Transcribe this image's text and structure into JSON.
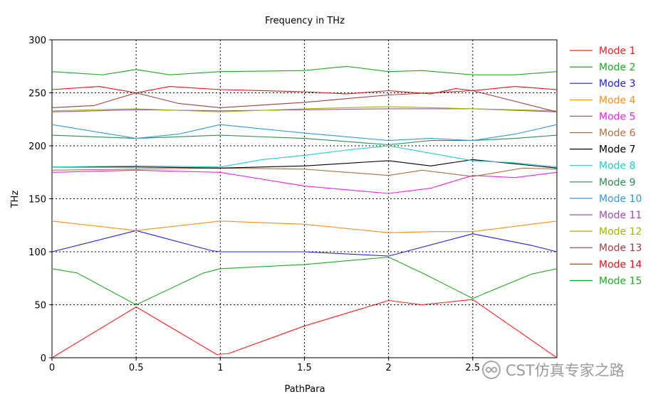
{
  "chart_data": {
    "type": "line",
    "title": "Frequency in THz",
    "xlabel": "PathPara",
    "ylabel": "THz",
    "xlim": [
      0,
      3
    ],
    "ylim": [
      0,
      300
    ],
    "xticks": [
      0,
      0.5,
      1,
      1.5,
      2,
      2.5
    ],
    "xtick_labels": [
      "0",
      "0.5",
      "1",
      "1.5",
      "2",
      "2.5"
    ],
    "yticks": [
      0,
      50,
      100,
      150,
      200,
      250,
      300
    ],
    "ytick_labels": [
      "0",
      "50",
      "100",
      "150",
      "200",
      "250",
      "300"
    ],
    "grid": true,
    "legend_position": "right",
    "series": [
      {
        "name": "Mode 1",
        "color": "#ff2020",
        "points": [
          [
            0,
            0
          ],
          [
            0.5,
            48
          ],
          [
            0.98,
            3
          ],
          [
            1.05,
            4
          ],
          [
            1.5,
            30
          ],
          [
            2,
            54
          ],
          [
            2.2,
            50
          ],
          [
            2.5,
            55
          ],
          [
            3,
            0
          ]
        ]
      },
      {
        "name": "Mode 2",
        "color": "#22aa22",
        "points": [
          [
            0,
            84
          ],
          [
            0.15,
            80
          ],
          [
            0.5,
            50
          ],
          [
            0.9,
            80
          ],
          [
            1,
            84
          ],
          [
            1.5,
            88
          ],
          [
            2,
            95
          ],
          [
            2.2,
            80
          ],
          [
            2.5,
            56
          ],
          [
            2.85,
            79
          ],
          [
            3,
            84
          ]
        ]
      },
      {
        "name": "Mode 3",
        "color": "#2020ee",
        "points": [
          [
            0,
            100
          ],
          [
            0.5,
            120
          ],
          [
            0.95,
            101
          ],
          [
            1,
            100
          ],
          [
            1.5,
            100
          ],
          [
            2,
            96
          ],
          [
            2.5,
            117
          ],
          [
            2.85,
            106
          ],
          [
            3,
            100
          ]
        ]
      },
      {
        "name": "Mode 4",
        "color": "#ff8c1a",
        "points": [
          [
            0,
            129
          ],
          [
            0.5,
            120
          ],
          [
            1,
            129
          ],
          [
            1.5,
            126
          ],
          [
            2,
            118
          ],
          [
            2.25,
            119
          ],
          [
            2.5,
            119
          ],
          [
            3,
            129
          ]
        ]
      },
      {
        "name": "Mode 5",
        "color": "#ee22ee",
        "points": [
          [
            0,
            175
          ],
          [
            0.5,
            177
          ],
          [
            1,
            175
          ],
          [
            1.5,
            162
          ],
          [
            2,
            155
          ],
          [
            2.25,
            160
          ],
          [
            2.5,
            172
          ],
          [
            2.75,
            170
          ],
          [
            3,
            175
          ]
        ]
      },
      {
        "name": "Mode 6",
        "color": "#b07040",
        "points": [
          [
            0,
            177
          ],
          [
            0.5,
            178
          ],
          [
            1,
            179
          ],
          [
            1.5,
            178
          ],
          [
            2,
            172
          ],
          [
            2.2,
            177
          ],
          [
            2.5,
            171
          ],
          [
            2.8,
            179
          ],
          [
            3,
            178
          ]
        ]
      },
      {
        "name": "Mode 7",
        "color": "#000000",
        "points": [
          [
            0,
            180
          ],
          [
            0.5,
            180
          ],
          [
            1,
            179
          ],
          [
            1.5,
            181
          ],
          [
            2,
            186
          ],
          [
            2.25,
            181
          ],
          [
            2.5,
            187
          ],
          [
            2.75,
            183
          ],
          [
            3,
            179
          ]
        ]
      },
      {
        "name": "Mode 8",
        "color": "#22cccc",
        "points": [
          [
            0,
            180
          ],
          [
            0.5,
            181
          ],
          [
            1,
            180
          ],
          [
            1.25,
            187
          ],
          [
            1.5,
            191
          ],
          [
            1.75,
            196
          ],
          [
            2,
            200
          ],
          [
            2.25,
            193
          ],
          [
            2.5,
            186
          ],
          [
            2.75,
            184
          ],
          [
            3,
            180
          ]
        ]
      },
      {
        "name": "Mode 9",
        "color": "#2e8b57",
        "points": [
          [
            0,
            210
          ],
          [
            0.5,
            207
          ],
          [
            1,
            210
          ],
          [
            1.5,
            207
          ],
          [
            2,
            201
          ],
          [
            2.25,
            205
          ],
          [
            2.5,
            205
          ],
          [
            2.75,
            207
          ],
          [
            3,
            210
          ]
        ]
      },
      {
        "name": "Mode 10",
        "color": "#3399dd",
        "points": [
          [
            0,
            220
          ],
          [
            0.5,
            207
          ],
          [
            0.75,
            211
          ],
          [
            1,
            220
          ],
          [
            1.5,
            212
          ],
          [
            2,
            205
          ],
          [
            2.25,
            207
          ],
          [
            2.5,
            205
          ],
          [
            2.75,
            211
          ],
          [
            3,
            220
          ]
        ]
      },
      {
        "name": "Mode 11",
        "color": "#a050b0",
        "points": [
          [
            0,
            232
          ],
          [
            0.5,
            234
          ],
          [
            1,
            233
          ],
          [
            1.5,
            234
          ],
          [
            2,
            235
          ],
          [
            2.5,
            235
          ],
          [
            3,
            232
          ]
        ]
      },
      {
        "name": "Mode 12",
        "color": "#99bb00",
        "points": [
          [
            0,
            233
          ],
          [
            0.5,
            235
          ],
          [
            1,
            232
          ],
          [
            1.5,
            235
          ],
          [
            2,
            237
          ],
          [
            2.5,
            235
          ],
          [
            3,
            233
          ]
        ]
      },
      {
        "name": "Mode 13",
        "color": "#a04040",
        "points": [
          [
            0,
            236
          ],
          [
            0.25,
            238
          ],
          [
            0.5,
            250
          ],
          [
            0.75,
            240
          ],
          [
            1,
            236
          ],
          [
            1.5,
            241
          ],
          [
            2,
            248
          ],
          [
            2.25,
            250
          ],
          [
            2.5,
            252
          ],
          [
            2.75,
            242
          ],
          [
            3,
            232
          ]
        ]
      },
      {
        "name": "Mode 14",
        "color": "#ee1111",
        "points": [
          [
            0,
            253
          ],
          [
            0.28,
            256
          ],
          [
            0.5,
            250
          ],
          [
            0.7,
            256
          ],
          [
            1,
            253
          ],
          [
            1.5,
            251
          ],
          [
            1.75,
            249
          ],
          [
            2,
            252
          ],
          [
            2.25,
            249
          ],
          [
            2.4,
            254
          ],
          [
            2.5,
            252
          ],
          [
            2.75,
            256
          ],
          [
            3,
            253
          ]
        ]
      },
      {
        "name": "Mode 15",
        "color": "#22aa22",
        "points": [
          [
            0,
            270
          ],
          [
            0.3,
            267
          ],
          [
            0.5,
            272
          ],
          [
            0.7,
            267
          ],
          [
            1,
            270
          ],
          [
            1.5,
            271
          ],
          [
            1.75,
            275
          ],
          [
            2,
            270
          ],
          [
            2.2,
            271
          ],
          [
            2.5,
            267
          ],
          [
            2.75,
            267
          ],
          [
            3,
            270
          ]
        ]
      }
    ]
  },
  "watermark": {
    "text": "CST仿真专家之路",
    "icon": "wechat-official-account-icon"
  }
}
